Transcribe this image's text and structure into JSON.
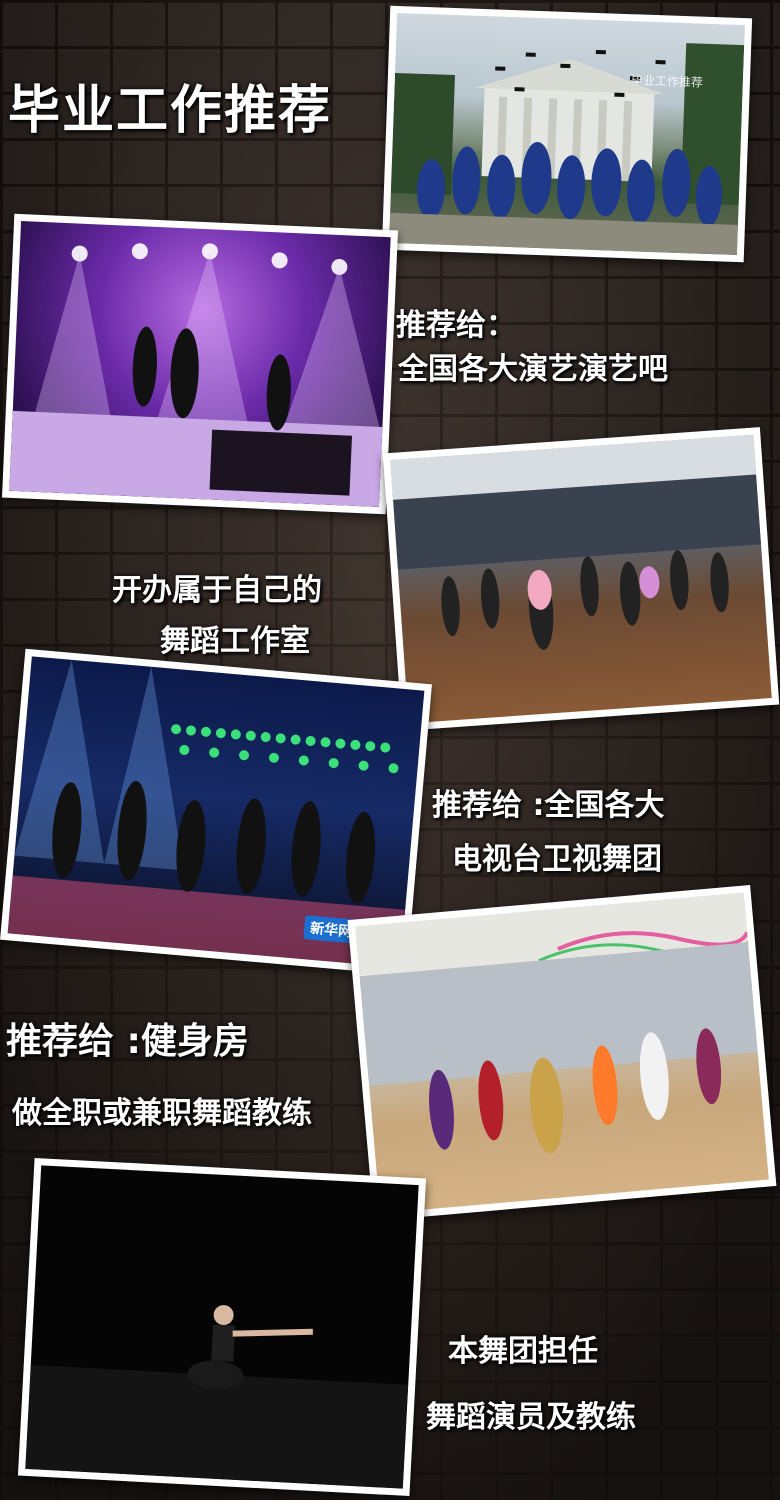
{
  "title": "毕业工作推荐",
  "photo1": {
    "watermark": "毕业工作推荐"
  },
  "caption1": {
    "line1": "推荐给：",
    "line2": "全国各大演艺演艺吧"
  },
  "caption2": {
    "line1": "开办属于自己的",
    "line2": "舞蹈工作室"
  },
  "caption3": {
    "line1": "推荐给 :全国各大",
    "line2": "电视台卫视舞团"
  },
  "photo4": {
    "logo": "新华网"
  },
  "caption4": {
    "line1": "推荐给 :健身房",
    "line2": "做全职或兼职舞蹈教练"
  },
  "caption5": {
    "line1": "本舞团担任",
    "line2": "舞蹈演员及教练"
  },
  "colors": {
    "wall": "#2b231f",
    "mortar": "#1a1512",
    "text": "#ffffff"
  }
}
